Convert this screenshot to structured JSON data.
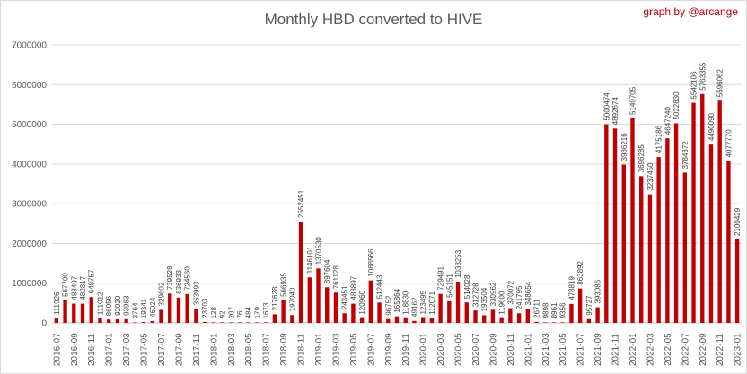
{
  "chart_data": {
    "type": "bar",
    "title": "Monthly HBD converted to  HIVE",
    "credit": "graph by @arcange",
    "bar_color": "#c00000",
    "grid": true,
    "ylim": [
      0,
      7000000
    ],
    "y_ticks": [
      "0",
      "1000000",
      "2000000",
      "3000000",
      "4000000",
      "5000000",
      "6000000",
      "7000000"
    ],
    "categories": [
      "2016-07",
      "2016-08",
      "2016-09",
      "2016-10",
      "2016-11",
      "2016-12",
      "2017-01",
      "2017-02",
      "2017-03",
      "2017-04",
      "2017-05",
      "2017-06",
      "2017-07",
      "2017-08",
      "2017-09",
      "2017-10",
      "2017-11",
      "2017-12",
      "2018-01",
      "2018-02",
      "2018-03",
      "2018-04",
      "2018-05",
      "2018-06",
      "2018-07",
      "2018-08",
      "2018-09",
      "2018-10",
      "2018-11",
      "2018-12",
      "2019-01",
      "2019-02",
      "2019-03",
      "2019-04",
      "2019-05",
      "2019-06",
      "2019-07",
      "2019-08",
      "2019-09",
      "2019-10",
      "2019-11",
      "2019-12",
      "2020-01",
      "2020-02",
      "2020-03",
      "2020-04",
      "2020-05",
      "2020-06",
      "2020-07",
      "2020-08",
      "2020-09",
      "2020-10",
      "2020-11",
      "2020-12",
      "2021-01",
      "2021-02",
      "2021-03",
      "2021-04",
      "2021-05",
      "2021-06",
      "2021-07",
      "2021-08",
      "2021-09",
      "2021-10",
      "2021-11",
      "2021-12",
      "2022-01",
      "2022-02",
      "2022-03",
      "2022-04",
      "2022-05",
      "2022-06",
      "2022-07",
      "2022-08",
      "2022-09",
      "2022-10",
      "2022-11",
      "2022-12",
      "2023-01"
    ],
    "values": [
      111926,
      567700,
      483497,
      482317,
      648757,
      111012,
      86056,
      92020,
      93983,
      3764,
      19341,
      46024,
      329602,
      739528,
      636933,
      724560,
      353993,
      23703,
      128,
      92,
      207,
      76,
      484,
      179,
      1673,
      217628,
      566935,
      197040,
      2552451,
      1146101,
      1370530,
      897604,
      761128,
      243451,
      483897,
      120960,
      1068566,
      512443,
      96752,
      165864,
      118830,
      49162,
      123495,
      112071,
      729491,
      545151,
      1038253,
      514028,
      312728,
      193504,
      330962,
      119600,
      370072,
      241795,
      348654,
      26711,
      9898,
      8961,
      9356,
      478819,
      863892,
      95727,
      393086,
      5000474,
      4892674,
      3986216,
      5149705,
      3696285,
      3237450,
      4175186,
      4647240,
      5022830,
      3784372,
      5542106,
      5763355,
      4490090,
      5596062,
      4077770,
      2100429
    ],
    "x_labels_every": 2
  }
}
